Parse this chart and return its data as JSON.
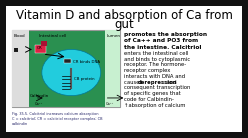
{
  "title_line1": "Vitamin D and absorption of Ca from",
  "title_line2": "gut",
  "outer_bg": "#111111",
  "slide_bg": "#ffffff",
  "diagram_border_color": "#aaaaaa",
  "green_bg": "#2a9050",
  "white_blood_bg": "#dddddd",
  "cyan_nucleus": "#22ccdd",
  "bold_lines": [
    "promotes the absorption",
    "of Ca++ and PO3 from",
    "the intestine. Calcitriol"
  ],
  "normal_lines": [
    "enters the intestinal cell",
    "and binds to cytoplasmic",
    "receptor. The hormone-",
    "receptor complex",
    "interacts with DNA and",
    "causes {derepression} and",
    "consequent transcription",
    "of specific genes that",
    "code for Calbindin-",
    "↑absorption of calcium"
  ],
  "fig_caption_line1": "Fig. 35.5. Calcitriol increases calcium absorption",
  "fig_caption_line2": "C = calcitriol; CR = calcitriol receptor complex; CB",
  "fig_caption_line3": "calbindin",
  "lbl_blood": "Blood",
  "lbl_intestinal": "Intestinal cell",
  "lbl_lumen": "Lumen",
  "lbl_cr_binds": "CR binds DNA",
  "lbl_cb_protein": "CB protein",
  "lbl_calbindin": "Calbindin",
  "lbl_ca1": "Ca⁺⁺",
  "lbl_ca2": "Ca⁺⁺"
}
